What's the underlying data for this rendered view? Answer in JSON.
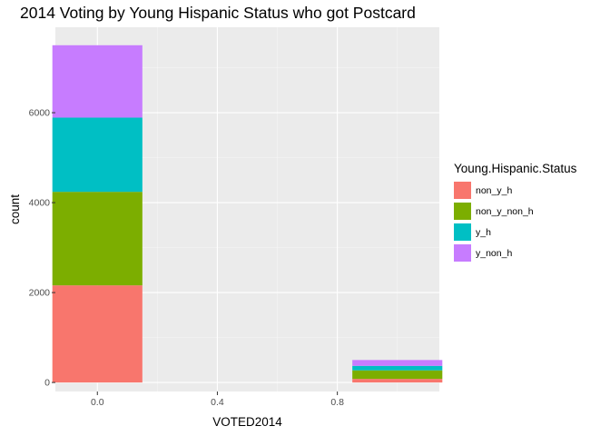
{
  "chart_data": {
    "type": "bar",
    "stacked": true,
    "title": "2014 Voting by Young Hispanic Status who got Postcard",
    "xlabel": "VOTED2014",
    "ylabel": "count",
    "x": [
      0,
      1
    ],
    "series": [
      {
        "name": "non_y_h",
        "values": [
          2160,
          80
        ],
        "color": "#F8766D"
      },
      {
        "name": "non_y_non_h",
        "values": [
          2080,
          190
        ],
        "color": "#7CAE00"
      },
      {
        "name": "y_h",
        "values": [
          1650,
          100
        ],
        "color": "#00BFC4"
      },
      {
        "name": "y_non_h",
        "values": [
          1610,
          130
        ],
        "color": "#C77CFF"
      }
    ],
    "xlim": [
      -0.14,
      1.14
    ],
    "ylim": [
      -200,
      7900
    ],
    "xticks": [
      0.0,
      0.4,
      0.8
    ],
    "xtick_labels": [
      "0.0",
      "0.4",
      "0.8"
    ],
    "yticks": [
      0,
      2000,
      4000,
      6000
    ],
    "ytick_labels": [
      "0",
      "2000",
      "4000",
      "6000"
    ],
    "grid": true,
    "legend_title": "Young.Hispanic.Status",
    "legend_position": "right"
  }
}
